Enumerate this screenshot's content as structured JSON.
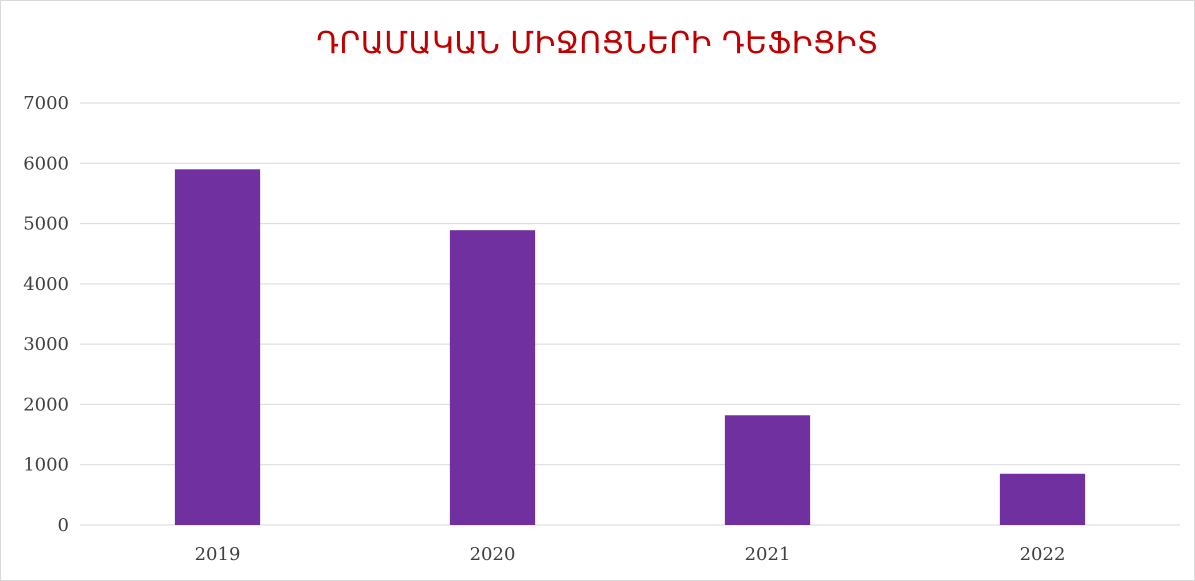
{
  "colors": {
    "title": "#c00000",
    "bar": "#7030a0",
    "grid": "#d9d9d9",
    "axis_text": "#404040",
    "frame": "#d9d9d9"
  },
  "chart_data": {
    "type": "bar",
    "title": "ԴՐԱՄԱԿԱՆ ՄԻՋՈՑՆԵՐԻ ԴԵՖԻՑԻՏ",
    "xlabel": "",
    "ylabel": "",
    "categories": [
      "2019",
      "2020",
      "2021",
      "2022"
    ],
    "values": [
      5900,
      4890,
      1820,
      850
    ],
    "ylim": [
      0,
      7000
    ],
    "yticks": [
      "0",
      "1000",
      "2000",
      "3000",
      "4000",
      "5000",
      "6000",
      "7000"
    ],
    "grid": true,
    "legend": "none"
  }
}
